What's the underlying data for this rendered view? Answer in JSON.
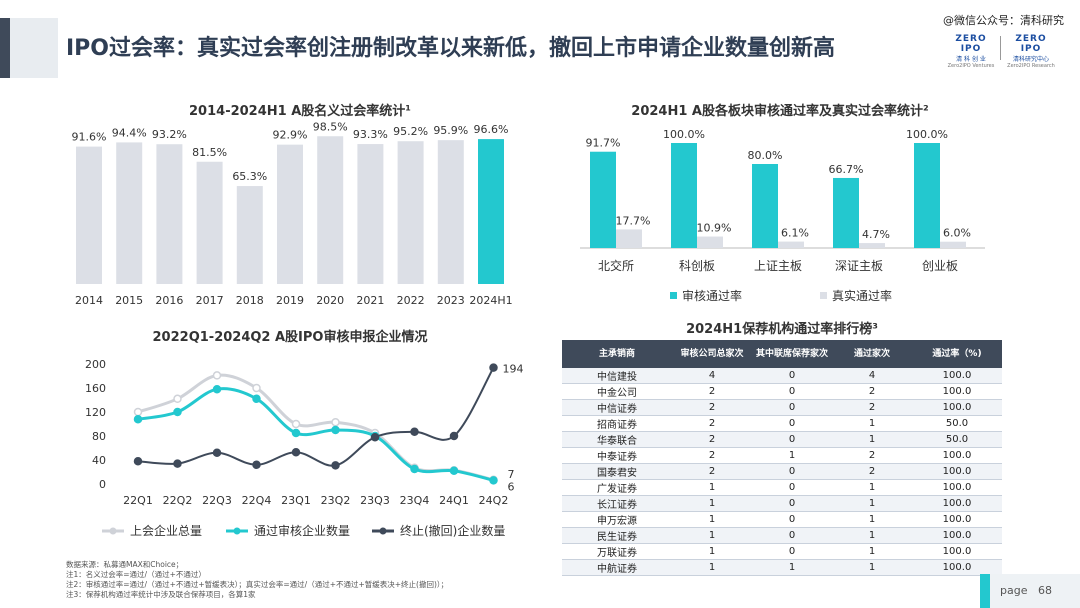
{
  "header": {
    "title": "IPO过会率：真实过会率创注册制改革以来新低，撤回上市申请企业数量创新高",
    "watermark": "@微信公众号：清科研究",
    "logo_a": {
      "line1": "ZERO IPO",
      "line2": "清 科 创 业",
      "line3": "Zero2IPO Ventures"
    },
    "logo_b": {
      "line1": "ZERO IPO",
      "line2": "清科研究中心",
      "line3": "Zero2IPO Research"
    }
  },
  "colors": {
    "bar_grey": "#dcdfe6",
    "accent": "#23c8cf",
    "navy": "#3f4a5a",
    "line_light": "#cfd2d8"
  },
  "chart_data": [
    {
      "id": "pass-rate",
      "type": "bar",
      "title": "2014-2024H1 A股名义过会率统计¹",
      "categories": [
        "2014",
        "2015",
        "2016",
        "2017",
        "2018",
        "2019",
        "2020",
        "2021",
        "2022",
        "2023",
        "2024H1"
      ],
      "values": [
        91.6,
        94.4,
        93.2,
        81.5,
        65.3,
        92.9,
        98.5,
        93.3,
        95.2,
        95.9,
        96.6
      ],
      "labels": [
        "91.6%",
        "94.4%",
        "93.2%",
        "81.5%",
        "65.3%",
        "92.9%",
        "98.5%",
        "93.3%",
        "95.2%",
        "95.9%",
        "96.6%"
      ],
      "highlight_index": 10,
      "ylim": [
        0,
        100
      ]
    },
    {
      "id": "board-rate",
      "type": "bar",
      "title": "2024H1 A股各板块审核通过率及真实过会率统计²",
      "categories": [
        "北交所",
        "科创板",
        "上证主板",
        "深证主板",
        "创业板"
      ],
      "series": [
        {
          "name": "审核通过率",
          "values": [
            91.7,
            100.0,
            80.0,
            66.7,
            100.0
          ],
          "labels": [
            "91.7%",
            "100.0%",
            "80.0%",
            "66.7%",
            "100.0%"
          ]
        },
        {
          "name": "真实通过率",
          "values": [
            17.7,
            10.9,
            6.1,
            4.7,
            6.0
          ],
          "labels": [
            "17.7%",
            "10.9%",
            "6.1%",
            "4.7%",
            "6.0%"
          ]
        }
      ],
      "ylim": [
        0,
        100
      ],
      "legend": "bottom"
    },
    {
      "id": "quarterly",
      "type": "line",
      "title": "2022Q1-2024Q2 A股IPO审核申报企业情况",
      "categories": [
        "22Q1",
        "22Q2",
        "22Q3",
        "22Q4",
        "23Q1",
        "23Q2",
        "23Q3",
        "23Q4",
        "24Q1",
        "24Q2"
      ],
      "yticks": [
        "0",
        "20",
        "40",
        "60",
        "80",
        "100",
        "120",
        "140",
        "160",
        "180",
        "200"
      ],
      "ylim": [
        0,
        200
      ],
      "series": [
        {
          "name": "上会企业总量",
          "values": [
            120,
            142,
            181,
            160,
            100,
            103,
            85,
            27,
            23,
            7
          ]
        },
        {
          "name": "通过审核企业数量",
          "values": [
            108,
            120,
            158,
            142,
            85,
            90,
            80,
            25,
            22,
            6
          ]
        },
        {
          "name": "终止(撤回)企业数量",
          "values": [
            38,
            34,
            52,
            32,
            53,
            31,
            78,
            87,
            80,
            194
          ]
        }
      ],
      "end_labels": [
        "7",
        "6",
        "194"
      ],
      "legend": "bottom"
    }
  ],
  "table": {
    "title": "2024H1保荐机构通过率排行榜³",
    "headers": [
      "主承销商",
      "审核公司总家次",
      "其中联席保荐家次",
      "通过家次",
      "通过率（%)"
    ],
    "rows": [
      [
        "中信建投",
        "4",
        "0",
        "4",
        "100.0"
      ],
      [
        "中金公司",
        "2",
        "0",
        "2",
        "100.0"
      ],
      [
        "中信证券",
        "2",
        "0",
        "2",
        "100.0"
      ],
      [
        "招商证券",
        "2",
        "0",
        "1",
        "50.0"
      ],
      [
        "华泰联合",
        "2",
        "0",
        "1",
        "50.0"
      ],
      [
        "中泰证券",
        "2",
        "1",
        "2",
        "100.0"
      ],
      [
        "国泰君安",
        "2",
        "0",
        "2",
        "100.0"
      ],
      [
        "广发证券",
        "1",
        "0",
        "1",
        "100.0"
      ],
      [
        "长江证券",
        "1",
        "0",
        "1",
        "100.0"
      ],
      [
        "申万宏源",
        "1",
        "0",
        "1",
        "100.0"
      ],
      [
        "民生证券",
        "1",
        "0",
        "1",
        "100.0"
      ],
      [
        "万联证券",
        "1",
        "0",
        "1",
        "100.0"
      ],
      [
        "中航证券",
        "1",
        "1",
        "1",
        "100.0"
      ]
    ]
  },
  "notes": [
    "数据来源：私募通MAX和Choice；",
    "注1：名义过会率=通过/（通过+不通过）",
    "注2：审核通过率=通过/（通过+不通过+暂缓表决）；真实过会率=通过/（通过+不通过+暂缓表决+终止(撤回)）；",
    "注3：保荐机构通过率统计中涉及联合保荐项目，各算1家"
  ],
  "footer": {
    "page_label": "page",
    "page_number": "68"
  }
}
